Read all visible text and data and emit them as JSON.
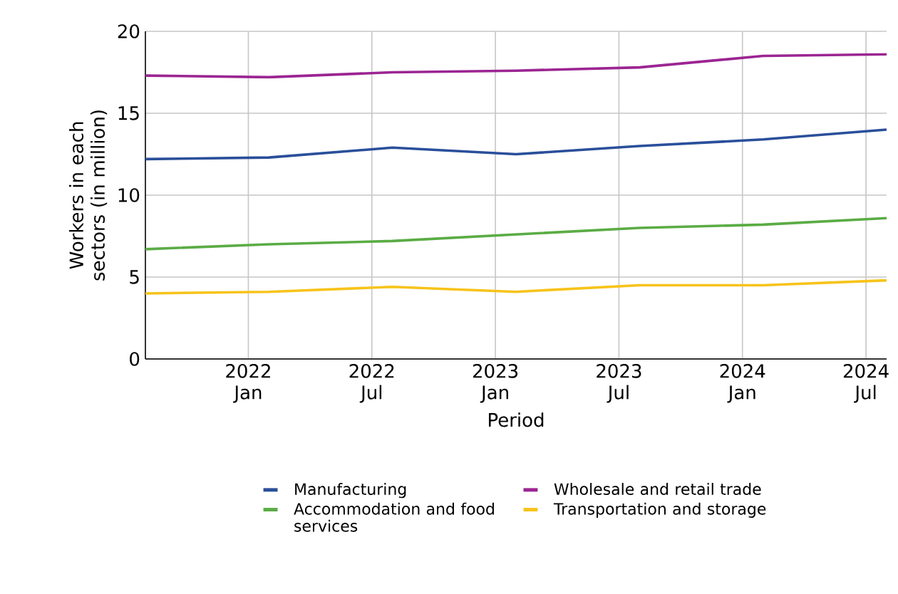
{
  "chart_data": {
    "type": "line",
    "xlabel": "Period",
    "ylabel": "Workers in each sectors (in million)",
    "x": [
      "2021-08",
      "2022-02",
      "2022-08",
      "2023-02",
      "2023-08",
      "2024-02",
      "2024-08"
    ],
    "series": [
      {
        "name": "Manufacturing",
        "color": "#2a4f9a",
        "values": [
          12.2,
          12.3,
          12.9,
          12.5,
          13.0,
          13.4,
          14.0
        ]
      },
      {
        "name": "Wholesale and retail trade",
        "color": "#9b2592",
        "values": [
          17.3,
          17.2,
          17.5,
          17.6,
          17.8,
          18.5,
          18.6
        ]
      },
      {
        "name": "Accommodation and food services",
        "color": "#5aac44",
        "values": [
          6.7,
          7.0,
          7.2,
          7.6,
          8.0,
          8.2,
          8.6
        ]
      },
      {
        "name": "Transportation and storage",
        "color": "#f7c31a",
        "values": [
          4.0,
          4.1,
          4.4,
          4.1,
          4.5,
          4.5,
          4.8
        ]
      }
    ],
    "xlim": [
      "2021-08",
      "2024-08"
    ],
    "xticks": [
      {
        "value": "2022-01",
        "label": "2022 Jan"
      },
      {
        "value": "2022-07",
        "label": "2022 Jul"
      },
      {
        "value": "2023-01",
        "label": "2023 Jan"
      },
      {
        "value": "2023-07",
        "label": "2023 Jul"
      },
      {
        "value": "2024-01",
        "label": "2024 Jan"
      },
      {
        "value": "2024-07",
        "label": "2024 Jul"
      }
    ],
    "ylim": [
      0,
      20
    ],
    "yticks": [
      0,
      5,
      10,
      15,
      20
    ],
    "grid": true,
    "legend": "bottom",
    "marker": "none",
    "line_style": "solid"
  }
}
